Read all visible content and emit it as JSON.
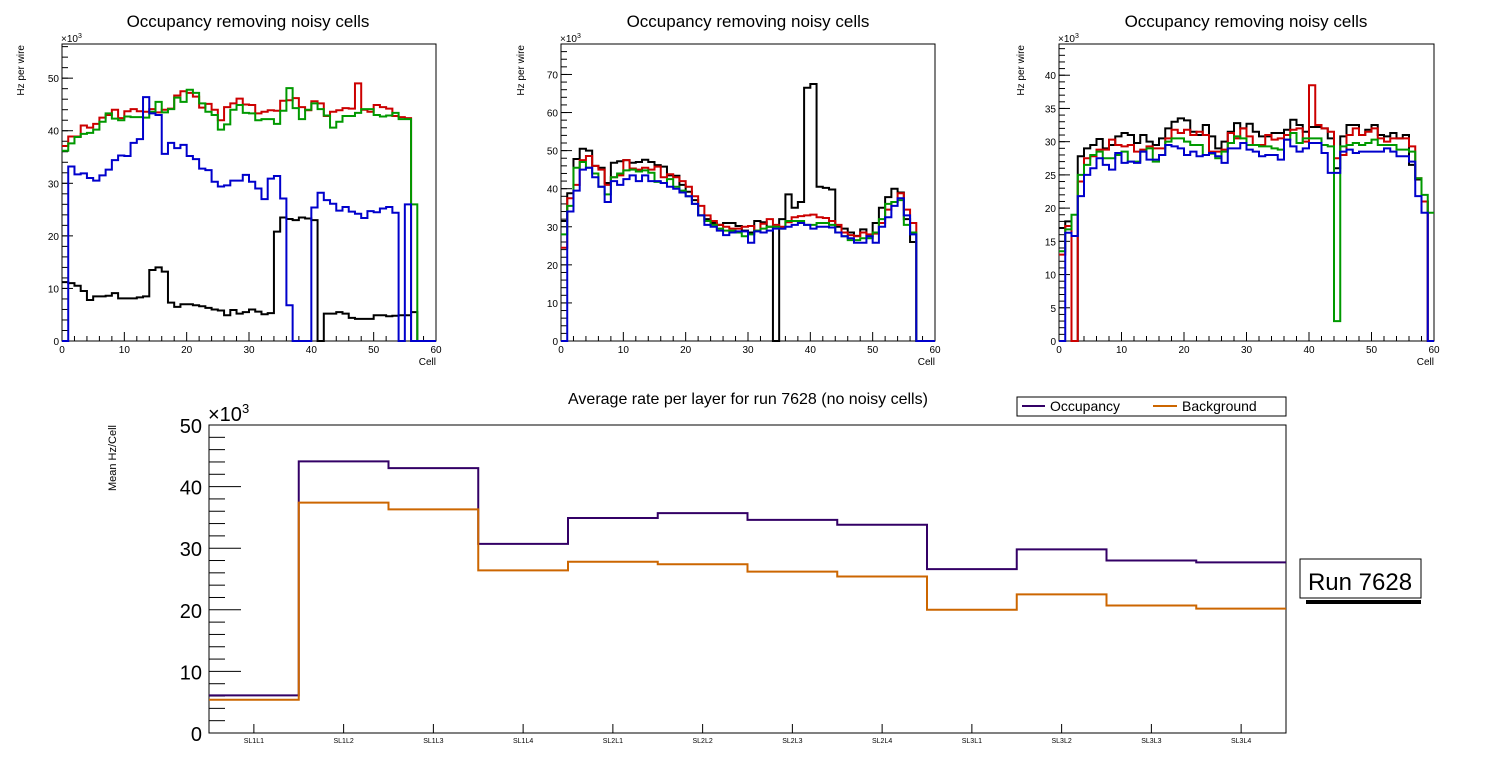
{
  "chart_data": [
    {
      "type": "line",
      "id": "panel1",
      "title": "Occupancy removing noisy cells",
      "xlabel": "Cell",
      "ylabel": "Hz per wire",
      "yexponent": "×10",
      "yexponent_power": "3",
      "xlim": [
        0,
        60
      ],
      "ylim": [
        0,
        56.5
      ],
      "xticks": [
        0,
        10,
        20,
        30,
        40,
        50,
        60
      ],
      "yticks": [
        0,
        10,
        20,
        30,
        40,
        50
      ],
      "bin_edges_start": 0,
      "series": [
        {
          "name": "black",
          "color": "#000000",
          "values": [
            11.2,
            11.0,
            10.5,
            9.5,
            7.8,
            8.5,
            8.5,
            8.6,
            9.1,
            8.1,
            8.1,
            8.1,
            8.3,
            8.5,
            13.5,
            14.0,
            13.2,
            7.3,
            6.5,
            7.0,
            7.0,
            6.8,
            6.6,
            6.3,
            6.0,
            5.8,
            4.9,
            5.9,
            5.2,
            5.5,
            6.0,
            5.6,
            5.1,
            5.3,
            20.8,
            23.5,
            23.2,
            23.0,
            23.5,
            23.3,
            23.0,
            0,
            5.2,
            5.2,
            5.5,
            5.2,
            4.4,
            4.2,
            4.2,
            4.2,
            4.9,
            4.9,
            4.7,
            4.8,
            4.9,
            4.9,
            5.5,
            0,
            0,
            0
          ]
        },
        {
          "name": "red",
          "color": "#cc0000",
          "values": [
            37.1,
            38.9,
            38.9,
            41.0,
            40.6,
            41.3,
            42.5,
            43.0,
            44.0,
            42.4,
            43.7,
            44.1,
            43.7,
            43.6,
            44.1,
            43.5,
            44.0,
            44.2,
            46.7,
            47.5,
            47.2,
            46.5,
            44.4,
            45.1,
            44.0,
            42.0,
            44.5,
            45.2,
            46.1,
            45.0,
            44.9,
            43.3,
            43.6,
            43.9,
            43.8,
            45.7,
            45.8,
            46.2,
            44.5,
            43.9,
            45.6,
            45.2,
            42.8,
            43.6,
            43.9,
            44.3,
            44.2,
            49.0,
            44.0,
            43.6,
            44.9,
            44.5,
            44.2,
            42.8,
            42.6,
            42.4,
            0,
            0,
            0,
            0
          ]
        },
        {
          "name": "green",
          "color": "#009900",
          "values": [
            36.2,
            37.6,
            38.8,
            39.4,
            39.6,
            40.2,
            41.7,
            43.3,
            42.3,
            42.0,
            42.7,
            42.6,
            42.6,
            42.5,
            43.6,
            45.5,
            43.5,
            44.1,
            46.3,
            45.5,
            47.8,
            47.2,
            45.2,
            43.6,
            43.0,
            40.2,
            41.2,
            44.0,
            44.9,
            43.4,
            43.3,
            42.0,
            42.2,
            42.2,
            41.3,
            43.8,
            48.1,
            44.3,
            42.2,
            44.0,
            45.2,
            44.1,
            42.9,
            40.6,
            41.7,
            42.8,
            42.8,
            43.4,
            44.1,
            44.1,
            43.0,
            42.7,
            42.9,
            43.4,
            42.2,
            42.2,
            26.0,
            0,
            0,
            0
          ]
        },
        {
          "name": "blue",
          "color": "#0000cc",
          "values": [
            0,
            33.2,
            31.7,
            31.9,
            31.0,
            30.5,
            31.5,
            32.6,
            34.4,
            35.3,
            35.2,
            37.7,
            38.4,
            46.4,
            43.3,
            43.0,
            35.6,
            37.7,
            36.7,
            37.3,
            35.2,
            34.6,
            32.8,
            32.5,
            30.3,
            29.4,
            29.6,
            30.5,
            30.5,
            31.6,
            30.3,
            29.0,
            27.0,
            30.9,
            31.4,
            27.1,
            6.8,
            0,
            0,
            0,
            25.4,
            28.2,
            26.8,
            26.1,
            24.8,
            25.5,
            24.6,
            24.2,
            23.4,
            24.7,
            24.5,
            25.2,
            25.5,
            24.4,
            0,
            26.0,
            0,
            0,
            0,
            0
          ]
        }
      ]
    },
    {
      "type": "line",
      "id": "panel2",
      "title": "Occupancy removing noisy cells",
      "xlabel": "Cell",
      "ylabel": "Hz per wire",
      "yexponent": "×10",
      "yexponent_power": "3",
      "xlim": [
        0,
        60
      ],
      "ylim": [
        0,
        78
      ],
      "xticks": [
        0,
        10,
        20,
        30,
        40,
        50,
        60
      ],
      "yticks": [
        0,
        10,
        20,
        30,
        40,
        50,
        60,
        70
      ],
      "series": [
        {
          "name": "black",
          "color": "#000000",
          "values": [
            31.5,
            38.8,
            47.8,
            50.5,
            50.0,
            46.0,
            45.5,
            41.5,
            46.8,
            47.2,
            47.5,
            46.8,
            47.0,
            47.6,
            47.0,
            46.2,
            45.8,
            43.5,
            43.4,
            41.0,
            39.2,
            37.0,
            33.0,
            32.0,
            31.0,
            30.5,
            31.0,
            31.0,
            30.2,
            29.0,
            28.5,
            31.5,
            31.2,
            30.0,
            0,
            32.0,
            38.5,
            35.0,
            36.5,
            66.5,
            67.5,
            40.5,
            40.2,
            39.8,
            30.0,
            29.5,
            28.5,
            27.6,
            29.3,
            27.5,
            31.0,
            35.0,
            37.8,
            40.0,
            39.0,
            32.0,
            26.0,
            0,
            0,
            0
          ]
        },
        {
          "name": "red",
          "color": "#cc0000",
          "values": [
            24.5,
            37.5,
            41.0,
            47.5,
            48.6,
            46.0,
            45.0,
            41.0,
            43.0,
            43.5,
            47.5,
            45.3,
            45.0,
            45.5,
            45.0,
            45.8,
            43.0,
            43.8,
            43.0,
            42.0,
            40.5,
            38.0,
            35.5,
            33.0,
            31.5,
            30.5,
            30.0,
            29.5,
            29.5,
            30.0,
            30.2,
            29.0,
            30.8,
            32.0,
            30.5,
            30.0,
            31.2,
            32.5,
            32.8,
            33.0,
            33.2,
            32.5,
            32.3,
            31.5,
            30.5,
            28.5,
            27.8,
            27.5,
            28.5,
            28.0,
            28.2,
            31.0,
            34.5,
            36.5,
            38.8,
            34.5,
            31.0,
            0,
            0,
            0
          ]
        },
        {
          "name": "green",
          "color": "#009900",
          "values": [
            28.0,
            35.5,
            45.5,
            47.0,
            45.5,
            44.0,
            40.5,
            38.5,
            43.0,
            44.0,
            44.8,
            45.0,
            44.5,
            44.8,
            44.2,
            41.8,
            41.5,
            42.5,
            40.5,
            39.5,
            38.0,
            36.0,
            33.0,
            31.5,
            30.5,
            29.5,
            29.0,
            29.0,
            28.5,
            27.5,
            28.0,
            29.0,
            29.5,
            30.0,
            30.0,
            29.5,
            31.5,
            31.5,
            31.5,
            30.5,
            30.5,
            31.0,
            31.0,
            30.5,
            28.5,
            27.5,
            26.5,
            26.5,
            27.0,
            27.0,
            28.5,
            32.0,
            36.0,
            36.5,
            37.0,
            30.5,
            28.5,
            0,
            0,
            0
          ]
        },
        {
          "name": "blue",
          "color": "#0000cc",
          "values": [
            0,
            34.0,
            39.5,
            45.0,
            45.5,
            43.0,
            40.5,
            36.5,
            42.0,
            41.0,
            42.5,
            43.5,
            42.0,
            43.5,
            42.0,
            42.0,
            41.5,
            40.5,
            40.0,
            39.0,
            38.0,
            36.0,
            33.0,
            30.5,
            30.0,
            29.0,
            27.8,
            28.5,
            28.8,
            28.8,
            25.8,
            28.8,
            28.5,
            29.0,
            29.5,
            29.5,
            30.0,
            30.5,
            31.0,
            30.5,
            29.5,
            30.0,
            30.0,
            29.8,
            28.5,
            27.5,
            27.0,
            25.8,
            25.8,
            27.5,
            25.8,
            30.0,
            32.5,
            35.5,
            37.5,
            33.0,
            28.0,
            0,
            0,
            0
          ]
        }
      ]
    },
    {
      "type": "line",
      "id": "panel3",
      "title": "Occupancy removing noisy cells",
      "xlabel": "Cell",
      "ylabel": "Hz per wire",
      "yexponent": "×10",
      "yexponent_power": "3",
      "xlim": [
        0,
        60
      ],
      "ylim": [
        0,
        44.7
      ],
      "xticks": [
        0,
        10,
        20,
        30,
        40,
        50,
        60
      ],
      "yticks": [
        0,
        5,
        10,
        15,
        20,
        25,
        30,
        35,
        40
      ],
      "series": [
        {
          "name": "black",
          "color": "#000000",
          "values": [
            17.0,
            18.0,
            0,
            27.8,
            29.0,
            29.5,
            30.4,
            29.0,
            29.5,
            30.8,
            31.3,
            31.0,
            29.8,
            31.0,
            30.0,
            29.5,
            30.5,
            32.0,
            33.0,
            33.5,
            33.2,
            31.5,
            31.0,
            32.5,
            30.8,
            29.0,
            30.0,
            31.5,
            32.8,
            32.0,
            32.7,
            31.5,
            30.8,
            30.8,
            31.3,
            31.3,
            31.8,
            33.3,
            32.5,
            31.5,
            32.2,
            32.2,
            32.0,
            30.5,
            26.0,
            30.8,
            32.5,
            32.5,
            31.0,
            31.8,
            32.5,
            31.0,
            30.8,
            31.3,
            30.5,
            31.0,
            26.5,
            24.3,
            21.0,
            0
          ]
        },
        {
          "name": "red",
          "color": "#cc0000",
          "values": [
            13.0,
            17.3,
            0,
            24.0,
            27.5,
            27.8,
            28.8,
            28.8,
            30.3,
            29.5,
            29.3,
            29.5,
            28.5,
            28.8,
            29.3,
            29.0,
            29.0,
            30.5,
            31.8,
            31.3,
            31.8,
            31.0,
            31.5,
            31.0,
            28.5,
            28.5,
            28.8,
            31.3,
            30.5,
            32.0,
            30.8,
            29.5,
            29.5,
            31.0,
            30.3,
            30.5,
            31.0,
            31.8,
            32.0,
            30.0,
            38.5,
            32.5,
            32.0,
            31.5,
            27.5,
            28.0,
            31.0,
            32.0,
            31.0,
            31.5,
            32.0,
            30.5,
            30.0,
            30.5,
            30.5,
            30.5,
            29.3,
            24.5,
            21.0,
            0
          ]
        },
        {
          "name": "green",
          "color": "#009900",
          "values": [
            13.5,
            16.8,
            19.0,
            25.0,
            26.5,
            28.0,
            28.5,
            27.5,
            27.5,
            28.0,
            28.5,
            27.0,
            27.0,
            28.5,
            29.0,
            27.0,
            28.0,
            30.0,
            30.5,
            30.5,
            30.0,
            29.5,
            29.5,
            28.0,
            28.2,
            27.5,
            28.5,
            29.8,
            30.8,
            30.5,
            29.5,
            29.5,
            29.3,
            29.3,
            29.0,
            28.8,
            30.3,
            31.3,
            29.8,
            30.5,
            30.5,
            30.5,
            29.5,
            29.3,
            3.0,
            29.3,
            29.5,
            29.8,
            29.5,
            29.8,
            30.3,
            29.5,
            29.5,
            29.5,
            28.8,
            28.8,
            28.5,
            24.5,
            22.0,
            19.3
          ]
        },
        {
          "name": "blue",
          "color": "#0000cc",
          "values": [
            0,
            16.3,
            15.8,
            21.8,
            25.0,
            26.0,
            27.5,
            26.5,
            25.8,
            28.3,
            26.8,
            27.0,
            26.8,
            28.5,
            27.3,
            27.3,
            28.0,
            29.5,
            29.3,
            29.0,
            28.0,
            28.5,
            27.8,
            28.0,
            28.3,
            27.8,
            26.8,
            29.0,
            29.0,
            29.8,
            28.8,
            28.5,
            27.8,
            28.0,
            28.0,
            27.3,
            30.3,
            29.3,
            28.5,
            29.0,
            29.8,
            29.8,
            28.3,
            25.3,
            25.3,
            28.5,
            28.8,
            28.3,
            28.5,
            28.5,
            28.5,
            28.5,
            29.0,
            28.5,
            27.8,
            27.8,
            27.0,
            21.8,
            19.3,
            0
          ]
        }
      ]
    },
    {
      "type": "line",
      "id": "summary",
      "title": "Average rate per layer for run 7628 (no noisy cells)",
      "xlabel": "",
      "ylabel": "Mean Hz/Cell",
      "yexponent": "×10",
      "yexponent_power": "3",
      "ylim": [
        0,
        50
      ],
      "yticks": [
        0,
        10,
        20,
        30,
        40,
        50
      ],
      "categories": [
        "SL1L1",
        "SL1L2",
        "SL1L3",
        "SL1L4",
        "SL2L1",
        "SL2L2",
        "SL2L3",
        "SL2L4",
        "SL3L1",
        "SL3L2",
        "SL3L3",
        "SL3L4"
      ],
      "legend_position": "top-right",
      "legend": [
        {
          "label": "Occupancy",
          "color": "#330066"
        },
        {
          "label": "Background",
          "color": "#cc6600"
        }
      ],
      "series": [
        {
          "name": "Occupancy",
          "color": "#330066",
          "values": [
            6.1,
            44.1,
            43.0,
            30.7,
            34.9,
            35.7,
            34.6,
            33.8,
            26.6,
            29.8,
            28.0,
            27.7
          ]
        },
        {
          "name": "Background",
          "color": "#cc6600",
          "values": [
            5.4,
            37.4,
            36.3,
            26.4,
            27.8,
            27.4,
            26.2,
            25.4,
            20.0,
            22.5,
            20.7,
            20.2
          ]
        }
      ]
    }
  ],
  "annotation": {
    "run_label": "Run 7628"
  }
}
